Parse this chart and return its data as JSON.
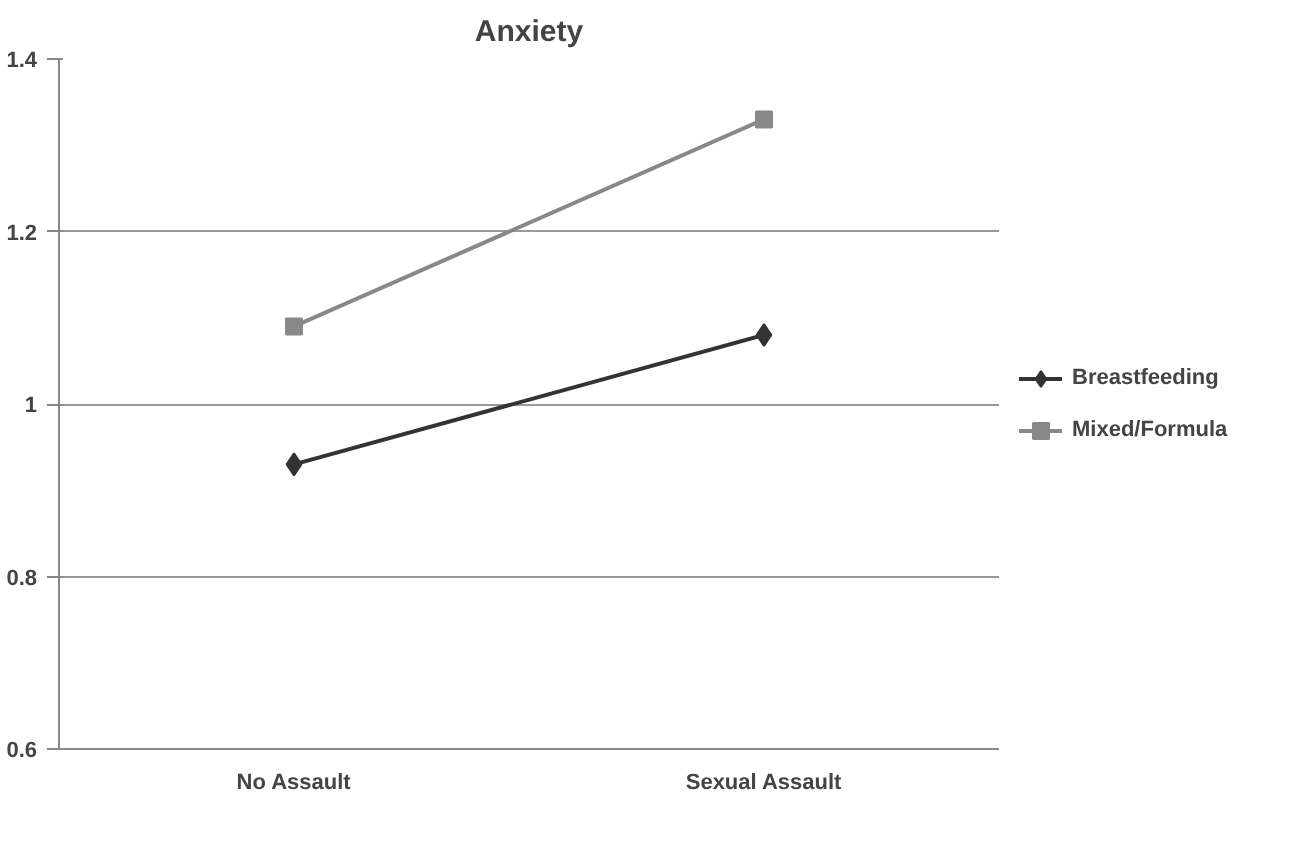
{
  "chart_data": {
    "type": "line",
    "title": "Anxiety",
    "categories": [
      "No Assault",
      "Sexual Assault"
    ],
    "series": [
      {
        "name": "Breastfeeding",
        "color": "#333333",
        "marker": "diamond",
        "values": [
          0.93,
          1.08
        ]
      },
      {
        "name": "Mixed/Formula",
        "color": "#888888",
        "marker": "square",
        "values": [
          1.09,
          1.33
        ]
      }
    ],
    "ylim": [
      0.6,
      1.4
    ],
    "yticks": [
      0.6,
      0.8,
      1,
      1.2,
      1.4
    ],
    "grid": "y",
    "legend": "right"
  }
}
